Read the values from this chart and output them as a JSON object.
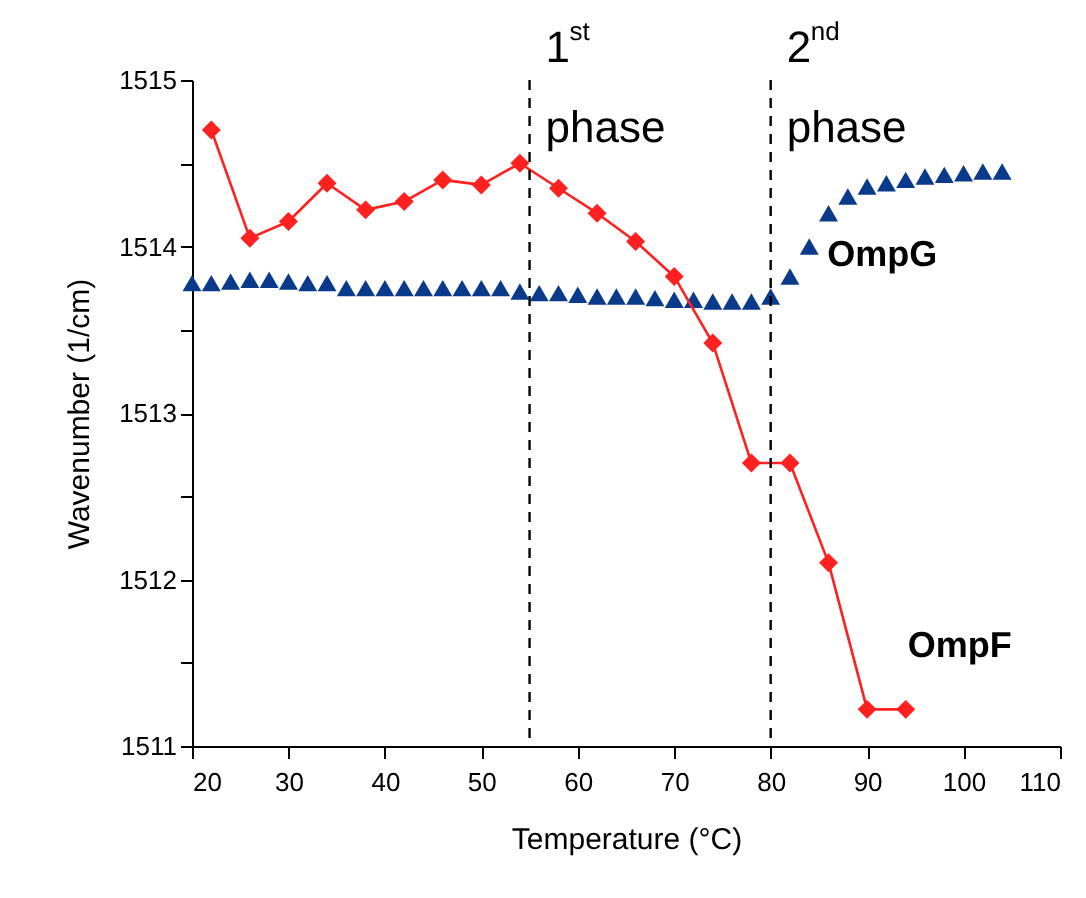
{
  "chart_data": {
    "type": "line",
    "xlabel": "Temperature (°C)",
    "ylabel": "Wavenumber (1/cm)",
    "xlim": [
      20,
      110
    ],
    "xticks": [
      20,
      30,
      40,
      50,
      60,
      70,
      80,
      90,
      100,
      110
    ],
    "ylim": [
      1511,
      1515
    ],
    "yticks": [
      1511,
      {
        "value": 1511.5,
        "label": null
      },
      1512,
      {
        "value": 1512.5,
        "label": null
      },
      1513,
      {
        "value": 1513.5,
        "label": null
      },
      1514,
      {
        "value": 1514.5,
        "label": null
      },
      1515
    ],
    "grid": false,
    "ref_lines": [
      {
        "axis": "x",
        "value": 55,
        "label": "1$^{st}$ phase",
        "color": "#000000",
        "line_style": "dashed"
      },
      {
        "axis": "x",
        "value": 80,
        "label": "2$^{nd}$ phase",
        "color": "#000000",
        "line_style": "dashed"
      }
    ],
    "series": [
      {
        "name": "OmpG",
        "type": "scatter",
        "marker": "triangle",
        "color": "#0a3a8a",
        "x": [
          20,
          22,
          24,
          26,
          28,
          30,
          32,
          34,
          36,
          38,
          40,
          42,
          44,
          46,
          48,
          50,
          52,
          54,
          56,
          58,
          60,
          62,
          64,
          66,
          68,
          70,
          72,
          74,
          76,
          78,
          80,
          82,
          84,
          86,
          88,
          90,
          92,
          94,
          96,
          98,
          100,
          102,
          104
        ],
        "values": [
          1513.78,
          1513.78,
          1513.79,
          1513.8,
          1513.8,
          1513.79,
          1513.78,
          1513.78,
          1513.75,
          1513.75,
          1513.75,
          1513.75,
          1513.75,
          1513.75,
          1513.75,
          1513.75,
          1513.75,
          1513.73,
          1513.72,
          1513.72,
          1513.71,
          1513.7,
          1513.7,
          1513.7,
          1513.69,
          1513.68,
          1513.68,
          1513.67,
          1513.67,
          1513.67,
          1513.7,
          1513.82,
          1514.0,
          1514.2,
          1514.3,
          1514.36,
          1514.38,
          1514.4,
          1514.42,
          1514.43,
          1514.44,
          1514.45,
          1514.45
        ]
      },
      {
        "name": "OmpF",
        "marker": "diamond",
        "color": "#ff2020",
        "x": [
          22,
          26,
          30,
          34,
          38,
          42,
          46,
          50,
          54,
          58,
          62,
          66,
          70,
          74,
          78,
          82,
          86,
          90,
          94
        ],
        "values": [
          1514.7,
          1514.05,
          1514.15,
          1514.38,
          1514.22,
          1514.27,
          1514.4,
          1514.37,
          1514.5,
          1514.35,
          1514.2,
          1514.03,
          1513.82,
          1513.42,
          1512.7,
          1512.7,
          1512.1,
          1511.22,
          1511.22
        ]
      }
    ]
  }
}
